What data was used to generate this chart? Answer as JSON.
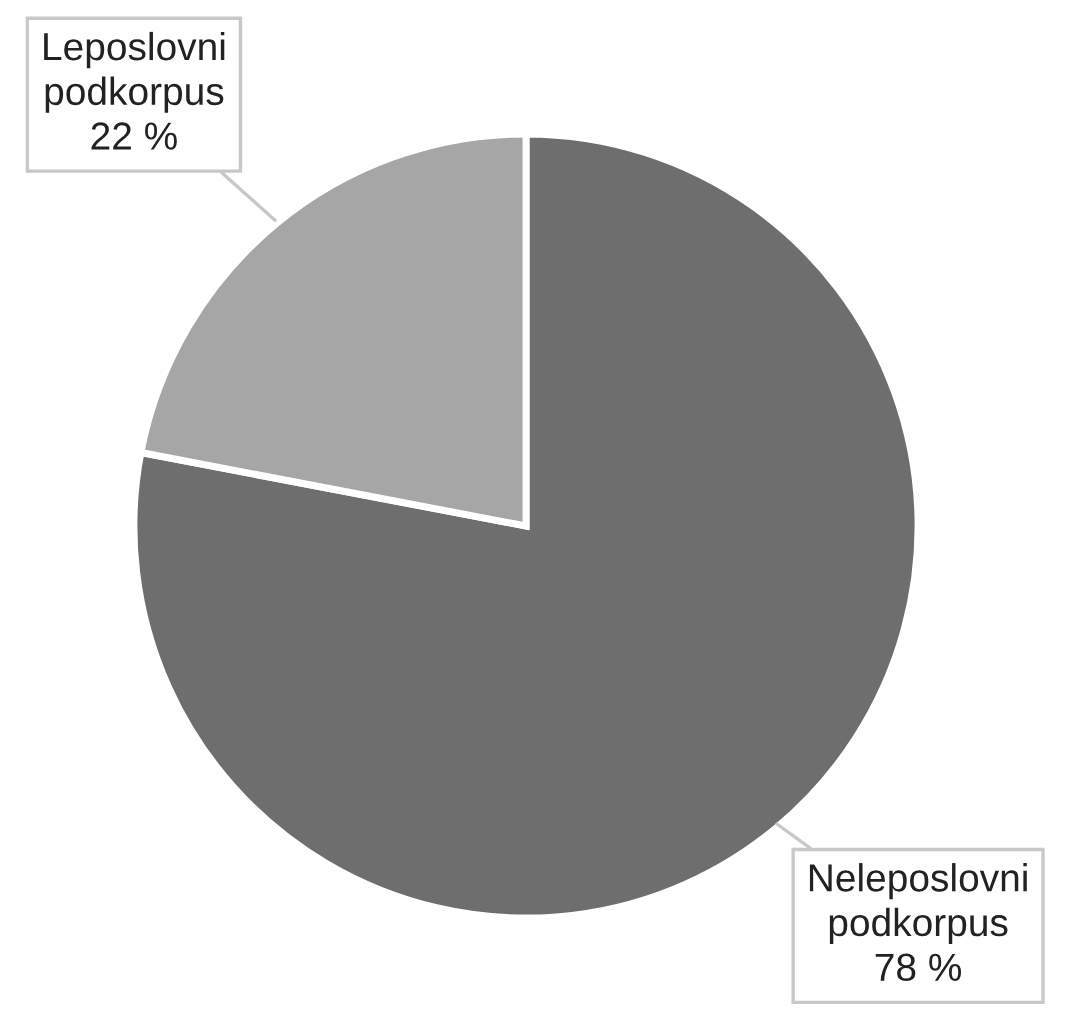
{
  "chart_data": {
    "type": "pie",
    "categories": [
      "Neleposlovni podkorpus",
      "Leposlovni podkorpus"
    ],
    "values": [
      78,
      22
    ],
    "colors": [
      "#6e6e6e",
      "#a6a6a6"
    ],
    "value_labels": [
      "78 %",
      "22 %"
    ]
  }
}
